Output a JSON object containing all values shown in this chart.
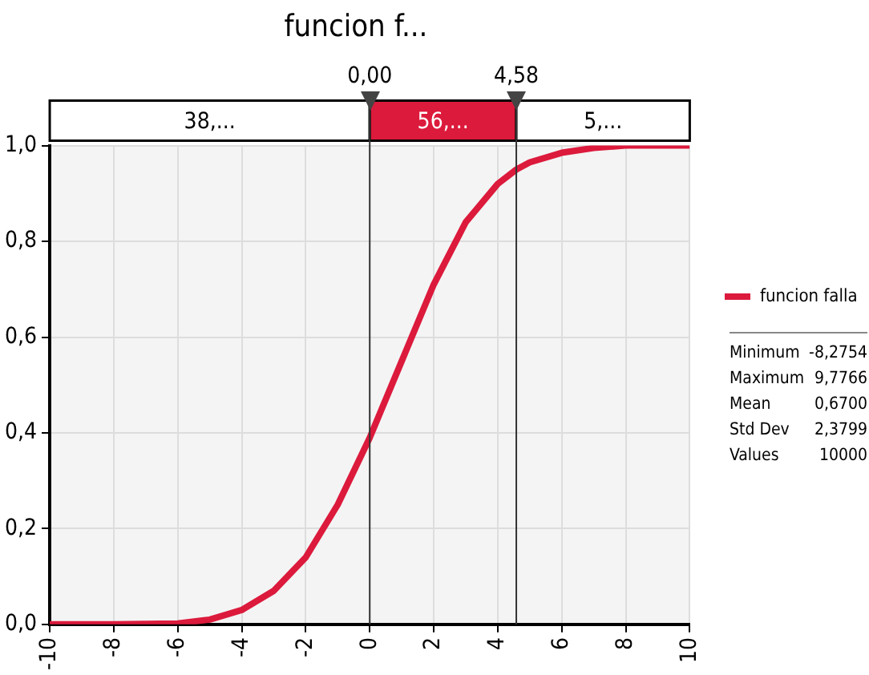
{
  "chart_data": {
    "type": "line",
    "title": "funcion f...",
    "x": [
      -10,
      -8,
      -6,
      -5,
      -4,
      -3,
      -2,
      -1,
      0,
      1,
      2,
      3,
      4,
      4.58,
      5,
      6,
      7,
      8,
      10
    ],
    "series": [
      {
        "name": "funcion falla",
        "color": "#dc1a3c",
        "values": [
          0,
          0,
          0.002,
          0.01,
          0.03,
          0.07,
          0.14,
          0.25,
          0.39,
          0.55,
          0.71,
          0.84,
          0.92,
          0.95,
          0.965,
          0.985,
          0.995,
          1,
          1
        ]
      }
    ],
    "xlim": [
      -10,
      10
    ],
    "xticks": [
      -10,
      -8,
      -6,
      -4,
      -2,
      0,
      2,
      4,
      6,
      8,
      10
    ],
    "ylim": [
      0,
      1
    ],
    "yticks": [
      {
        "value": 0,
        "label": "0,0"
      },
      {
        "value": 0.2,
        "label": "0,2"
      },
      {
        "value": 0.4,
        "label": "0,4"
      },
      {
        "value": 0.6,
        "label": "0,6"
      },
      {
        "value": 0.8,
        "label": "0,8"
      },
      {
        "value": 1,
        "label": "1,0"
      }
    ],
    "ref_lines": [
      {
        "axis": "x",
        "value": 0,
        "label": "0,00",
        "color": "#333333"
      },
      {
        "axis": "x",
        "value": 4.58,
        "label": "4,58",
        "color": "#333333"
      }
    ],
    "annotations": [
      "38,...",
      "56,...",
      "5,...",
      "Minimum -8,2754",
      "Maximum 9,7766",
      "Mean 0,6700",
      "Std Dev 2,3799",
      "Values 10000"
    ],
    "grid": true,
    "legend": "right",
    "marker": "none",
    "line_style": "solid"
  }
}
